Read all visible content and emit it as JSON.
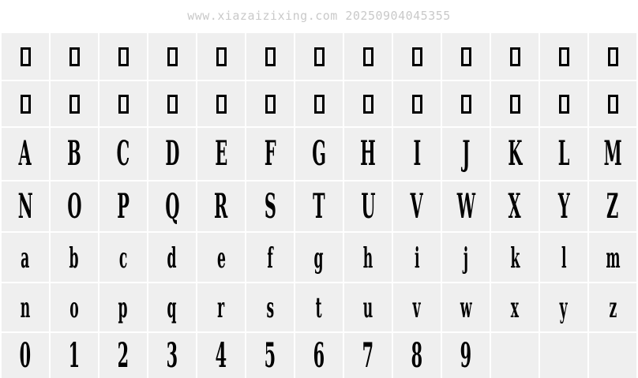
{
  "watermark": "www.xiazaizixing.com 20250904045355",
  "colors": {
    "page_background": "#ffffff",
    "cell_background": "#efefef",
    "glyph_color": "#000000",
    "watermark_color": "#c9c9c9"
  },
  "grid": {
    "columns": 13,
    "rows": [
      {
        "type": "notdef",
        "name": "notdef-row-1",
        "count": 13
      },
      {
        "type": "notdef",
        "name": "notdef-row-2",
        "count": 13
      },
      {
        "type": "caps",
        "name": "uppercase-a-m",
        "chars": [
          "A",
          "B",
          "C",
          "D",
          "E",
          "F",
          "G",
          "H",
          "I",
          "J",
          "K",
          "L",
          "M"
        ]
      },
      {
        "type": "caps",
        "name": "uppercase-n-z",
        "chars": [
          "N",
          "O",
          "P",
          "Q",
          "R",
          "S",
          "T",
          "U",
          "V",
          "W",
          "X",
          "Y",
          "Z"
        ]
      },
      {
        "type": "lower",
        "name": "lowercase-a-m",
        "chars": [
          "a",
          "b",
          "c",
          "d",
          "e",
          "f",
          "g",
          "h",
          "i",
          "j",
          "k",
          "l",
          "m"
        ]
      },
      {
        "type": "lower",
        "name": "lowercase-n-z",
        "chars": [
          "n",
          "o",
          "p",
          "q",
          "r",
          "s",
          "t",
          "u",
          "v",
          "w",
          "x",
          "y",
          "z"
        ]
      },
      {
        "type": "digits",
        "name": "digits-0-9",
        "chars": [
          "0",
          "1",
          "2",
          "3",
          "4",
          "5",
          "6",
          "7",
          "8",
          "9",
          "",
          "",
          ""
        ]
      }
    ]
  }
}
